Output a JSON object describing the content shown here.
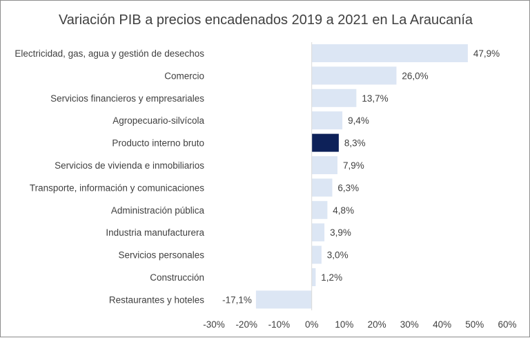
{
  "chart_data": {
    "type": "bar",
    "orientation": "horizontal",
    "title": "Variación PIB a precios encadenados 2019 a 2021 en La Araucanía",
    "xlabel": "",
    "ylabel": "",
    "xlim": [
      -30,
      60
    ],
    "x_ticks": [
      -30,
      -20,
      -10,
      0,
      10,
      20,
      30,
      40,
      50,
      60
    ],
    "x_tick_labels": [
      "-30%",
      "-20%",
      "-10%",
      "0%",
      "10%",
      "20%",
      "30%",
      "40%",
      "50%",
      "60%"
    ],
    "grid": false,
    "categories": [
      "Electricidad, gas, agua y gestión de desechos",
      "Comercio",
      "Servicios financieros y empresariales",
      "Agropecuario-silvícola",
      "Producto interno bruto",
      "Servicios de vivienda e inmobiliarios",
      "Transporte, información y comunicaciones",
      "Administración pública",
      "Industria manufacturera",
      "Servicios personales",
      "Construcción",
      "Restaurantes y hoteles"
    ],
    "values": [
      47.9,
      26.0,
      13.7,
      9.4,
      8.3,
      7.9,
      6.3,
      4.8,
      3.9,
      3.0,
      1.2,
      -17.1
    ],
    "value_labels": [
      "47,9%",
      "26,0%",
      "13,7%",
      "9,4%",
      "8,3%",
      "7,9%",
      "6,3%",
      "4,8%",
      "3,9%",
      "3,0%",
      "1,2%",
      "-17,1%"
    ],
    "highlight_category": "Producto interno bruto",
    "colors": {
      "bar": "#dce6f4",
      "highlight": "#0d2159",
      "axis": "#d9d9d9",
      "text": "#404040"
    }
  }
}
